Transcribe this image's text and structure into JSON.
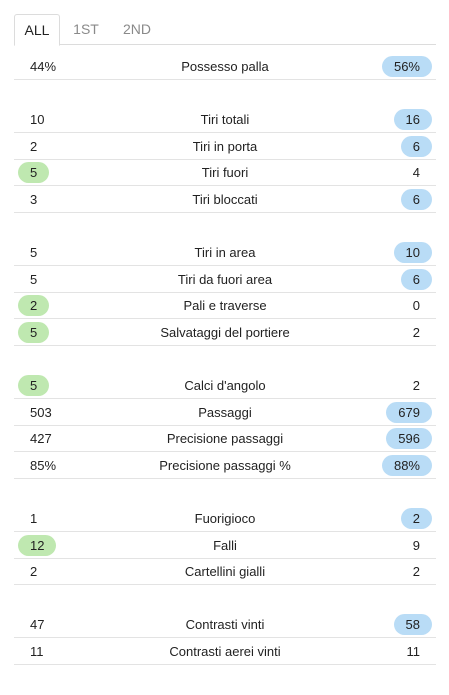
{
  "tabs": [
    "ALL",
    "1ST",
    "2ND"
  ],
  "active_tab": 0,
  "colors": {
    "home_highlight": "#bfe8b0",
    "away_highlight": "#b9dcf6"
  },
  "groups": [
    {
      "rows": [
        {
          "label": "Possesso palla",
          "home": "44%",
          "away": "56%",
          "better": "away"
        }
      ]
    },
    {
      "rows": [
        {
          "label": "Tiri totali",
          "home": "10",
          "away": "16",
          "better": "away"
        },
        {
          "label": "Tiri in porta",
          "home": "2",
          "away": "6",
          "better": "away"
        },
        {
          "label": "Tiri fuori",
          "home": "5",
          "away": "4",
          "better": "home"
        },
        {
          "label": "Tiri bloccati",
          "home": "3",
          "away": "6",
          "better": "away"
        }
      ]
    },
    {
      "rows": [
        {
          "label": "Tiri in area",
          "home": "5",
          "away": "10",
          "better": "away"
        },
        {
          "label": "Tiri da fuori area",
          "home": "5",
          "away": "6",
          "better": "away"
        },
        {
          "label": "Pali e traverse",
          "home": "2",
          "away": "0",
          "better": "home"
        },
        {
          "label": "Salvataggi del portiere",
          "home": "5",
          "away": "2",
          "better": "home"
        }
      ]
    },
    {
      "rows": [
        {
          "label": "Calci d'angolo",
          "home": "5",
          "away": "2",
          "better": "home"
        },
        {
          "label": "Passaggi",
          "home": "503",
          "away": "679",
          "better": "away"
        },
        {
          "label": "Precisione passaggi",
          "home": "427",
          "away": "596",
          "better": "away"
        },
        {
          "label": "Precisione passaggi %",
          "home": "85%",
          "away": "88%",
          "better": "away"
        }
      ]
    },
    {
      "rows": [
        {
          "label": "Fuorigioco",
          "home": "1",
          "away": "2",
          "better": "away"
        },
        {
          "label": "Falli",
          "home": "12",
          "away": "9",
          "better": "home"
        },
        {
          "label": "Cartellini gialli",
          "home": "2",
          "away": "2",
          "better": "none"
        }
      ]
    },
    {
      "rows": [
        {
          "label": "Contrasti vinti",
          "home": "47",
          "away": "58",
          "better": "away"
        },
        {
          "label": "Contrasti aerei vinti",
          "home": "11",
          "away": "11",
          "better": "none"
        }
      ]
    }
  ]
}
